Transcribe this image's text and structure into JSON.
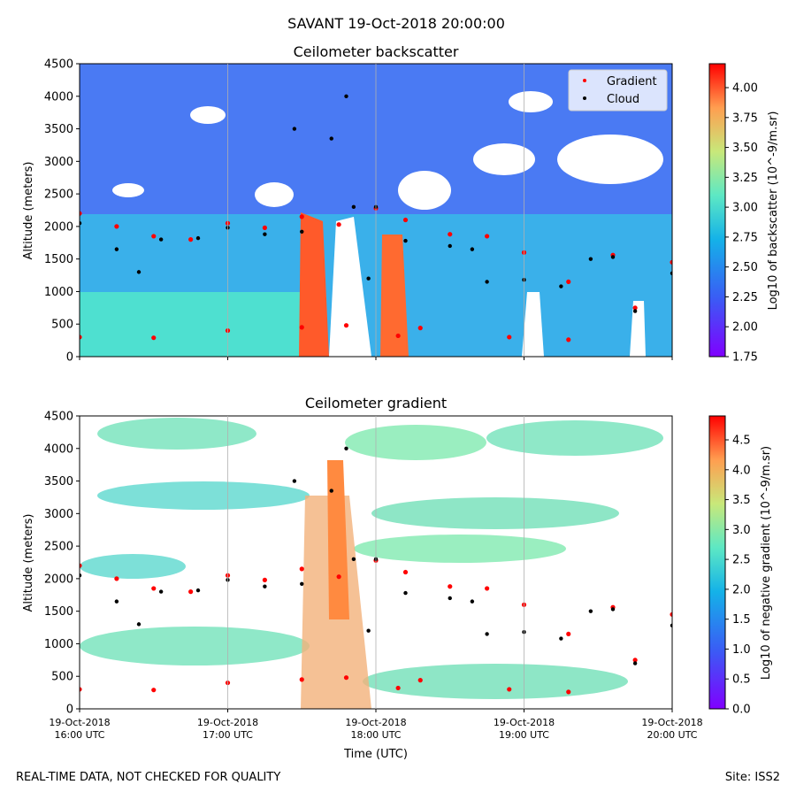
{
  "figure": {
    "suptitle": "SAVANT 19-Oct-2018 20:00:00",
    "footer_left": "REAL-TIME DATA, NOT CHECKED FOR QUALITY",
    "footer_right": "Site: ISS2",
    "xlabel": "Time (UTC)"
  },
  "chart_data": [
    {
      "type": "heatmap",
      "title": "Ceilometer backscatter",
      "ylabel": "Altitude (meters)",
      "xlabel": "",
      "x_ticks": [
        "19-Oct-2018\n16:00 UTC",
        "19-Oct-2018\n17:00 UTC",
        "19-Oct-2018\n18:00 UTC",
        "19-Oct-2018\n19:00 UTC",
        "19-Oct-2018\n20:00 UTC"
      ],
      "x_range": [
        "16:00",
        "20:00"
      ],
      "ylim": [
        0,
        4500
      ],
      "y_ticks": [
        0,
        500,
        1000,
        1500,
        2000,
        2500,
        3000,
        3500,
        4000,
        4500
      ],
      "colorbar": {
        "label": "Log10 of backscatter (10^-9/m.sr)",
        "range": [
          1.75,
          4.2
        ],
        "ticks": [
          "1.75",
          "2.00",
          "2.25",
          "2.50",
          "2.75",
          "3.00",
          "3.25",
          "3.50",
          "3.75",
          "4.00"
        ]
      },
      "legend": {
        "placement": "top-right",
        "entries": [
          "Gradient",
          "Cloud"
        ]
      },
      "series": [
        {
          "name": "Gradient",
          "color": "#ff0000",
          "points": [
            [
              0.0,
              2200
            ],
            [
              0.25,
              2000
            ],
            [
              0.5,
              1850
            ],
            [
              0.75,
              1800
            ],
            [
              1.0,
              2050
            ],
            [
              1.25,
              1980
            ],
            [
              1.5,
              2150
            ],
            [
              1.75,
              2030
            ],
            [
              2.0,
              2280
            ],
            [
              2.2,
              2100
            ],
            [
              2.5,
              1880
            ],
            [
              2.75,
              1850
            ],
            [
              3.0,
              1600
            ],
            [
              3.3,
              1150
            ],
            [
              3.6,
              1560
            ],
            [
              3.75,
              750
            ],
            [
              4.0,
              1450
            ],
            [
              0.0,
              300
            ],
            [
              0.5,
              290
            ],
            [
              1.0,
              400
            ],
            [
              1.5,
              450
            ],
            [
              1.8,
              480
            ],
            [
              2.15,
              320
            ],
            [
              2.3,
              440
            ],
            [
              2.9,
              300
            ],
            [
              3.3,
              260
            ]
          ]
        },
        {
          "name": "Cloud",
          "color": "#000000",
          "points": [
            [
              0.0,
              2050
            ],
            [
              0.25,
              1650
            ],
            [
              0.4,
              1300
            ],
            [
              0.55,
              1800
            ],
            [
              0.8,
              1820
            ],
            [
              1.0,
              1980
            ],
            [
              1.25,
              1880
            ],
            [
              1.5,
              1920
            ],
            [
              1.45,
              3500
            ],
            [
              1.7,
              3350
            ],
            [
              1.8,
              4000
            ],
            [
              1.85,
              2300
            ],
            [
              1.95,
              1200
            ],
            [
              2.0,
              2300
            ],
            [
              2.2,
              1780
            ],
            [
              2.5,
              1700
            ],
            [
              2.65,
              1650
            ],
            [
              2.75,
              1150
            ],
            [
              3.0,
              1180
            ],
            [
              3.25,
              1080
            ],
            [
              3.45,
              1500
            ],
            [
              3.6,
              1530
            ],
            [
              3.75,
              700
            ],
            [
              4.0,
              1280
            ]
          ]
        }
      ]
    },
    {
      "type": "heatmap",
      "title": "Ceilometer gradient",
      "ylabel": "Altitude (meters)",
      "xlabel": "Time (UTC)",
      "x_ticks": [
        "19-Oct-2018\n16:00 UTC",
        "19-Oct-2018\n17:00 UTC",
        "19-Oct-2018\n18:00 UTC",
        "19-Oct-2018\n19:00 UTC",
        "19-Oct-2018\n20:00 UTC"
      ],
      "x_range": [
        "16:00",
        "20:00"
      ],
      "ylim": [
        0,
        4500
      ],
      "y_ticks": [
        0,
        500,
        1000,
        1500,
        2000,
        2500,
        3000,
        3500,
        4000,
        4500
      ],
      "colorbar": {
        "label": "Log10 of negative gradient (10^-9/m.sr)",
        "range": [
          0.0,
          4.9
        ],
        "ticks": [
          "0.0",
          "0.5",
          "1.0",
          "1.5",
          "2.0",
          "2.5",
          "3.0",
          "3.5",
          "4.0",
          "4.5"
        ]
      },
      "series": [
        {
          "name": "Gradient",
          "color": "#ff0000",
          "points": [
            [
              0.0,
              2200
            ],
            [
              0.25,
              2000
            ],
            [
              0.5,
              1850
            ],
            [
              0.75,
              1800
            ],
            [
              1.0,
              2050
            ],
            [
              1.25,
              1980
            ],
            [
              1.5,
              2150
            ],
            [
              1.75,
              2030
            ],
            [
              2.0,
              2280
            ],
            [
              2.2,
              2100
            ],
            [
              2.5,
              1880
            ],
            [
              2.75,
              1850
            ],
            [
              3.0,
              1600
            ],
            [
              3.3,
              1150
            ],
            [
              3.6,
              1560
            ],
            [
              3.75,
              750
            ],
            [
              4.0,
              1450
            ],
            [
              0.0,
              300
            ],
            [
              0.5,
              290
            ],
            [
              1.0,
              400
            ],
            [
              1.5,
              450
            ],
            [
              1.8,
              480
            ],
            [
              2.15,
              320
            ],
            [
              2.3,
              440
            ],
            [
              2.9,
              300
            ],
            [
              3.3,
              260
            ]
          ]
        },
        {
          "name": "Cloud",
          "color": "#000000",
          "points": [
            [
              0.0,
              2050
            ],
            [
              0.25,
              1650
            ],
            [
              0.4,
              1300
            ],
            [
              0.55,
              1800
            ],
            [
              0.8,
              1820
            ],
            [
              1.0,
              1980
            ],
            [
              1.25,
              1880
            ],
            [
              1.5,
              1920
            ],
            [
              1.45,
              3500
            ],
            [
              1.7,
              3350
            ],
            [
              1.8,
              4000
            ],
            [
              1.85,
              2300
            ],
            [
              1.95,
              1200
            ],
            [
              2.0,
              2300
            ],
            [
              2.2,
              1780
            ],
            [
              2.5,
              1700
            ],
            [
              2.65,
              1650
            ],
            [
              2.75,
              1150
            ],
            [
              3.0,
              1180
            ],
            [
              3.25,
              1080
            ],
            [
              3.45,
              1500
            ],
            [
              3.6,
              1530
            ],
            [
              3.75,
              700
            ],
            [
              4.0,
              1280
            ]
          ]
        }
      ]
    }
  ]
}
